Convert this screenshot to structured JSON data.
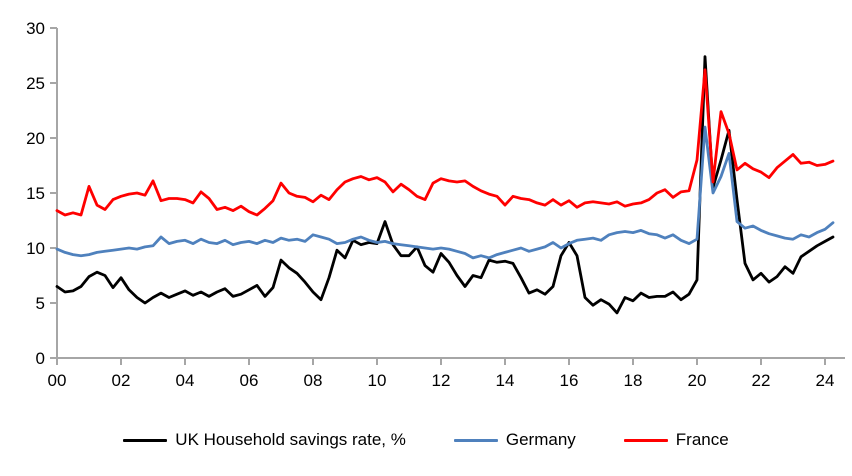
{
  "chart_data": {
    "type": "line",
    "title": "",
    "xlabel": "",
    "ylabel": "",
    "frequency": "quarterly",
    "x_start_year": 2000,
    "x_end": "2024Q2",
    "x_tick_labels": [
      "00",
      "02",
      "04",
      "06",
      "08",
      "10",
      "12",
      "14",
      "16",
      "18",
      "20",
      "22",
      "24"
    ],
    "x_tick_years": [
      2000,
      2002,
      2004,
      2006,
      2008,
      2010,
      2012,
      2014,
      2016,
      2018,
      2020,
      2022,
      2024
    ],
    "y_ticks": [
      0,
      5,
      10,
      15,
      20,
      25,
      30
    ],
    "ylim": [
      0,
      30
    ],
    "grid": false,
    "legend_position": "bottom",
    "axis_color": "#a6a6a6",
    "series": [
      {
        "name": "UK Household savings rate, %",
        "color": "#000000",
        "values": [
          6.5,
          6.0,
          6.1,
          6.5,
          7.4,
          7.8,
          7.5,
          6.4,
          7.3,
          6.2,
          5.5,
          5.0,
          5.5,
          5.9,
          5.5,
          5.8,
          6.1,
          5.7,
          6.0,
          5.6,
          6.0,
          6.3,
          5.6,
          5.8,
          6.2,
          6.6,
          5.6,
          6.4,
          8.9,
          8.2,
          7.7,
          6.9,
          6.0,
          5.3,
          7.3,
          9.8,
          9.1,
          10.7,
          10.3,
          10.5,
          10.4,
          12.4,
          10.3,
          9.3,
          9.3,
          10.1,
          8.4,
          7.8,
          9.5,
          8.7,
          7.5,
          6.5,
          7.5,
          7.3,
          8.9,
          8.7,
          8.8,
          8.6,
          7.3,
          5.9,
          6.2,
          5.8,
          6.5,
          9.3,
          10.5,
          9.3,
          5.5,
          4.8,
          5.3,
          4.9,
          4.1,
          5.5,
          5.2,
          5.9,
          5.5,
          5.6,
          5.6,
          6.0,
          5.3,
          5.8,
          7.1,
          27.4,
          15.5,
          18.0,
          20.7,
          14.4,
          8.6,
          7.1,
          7.7,
          6.9,
          7.4,
          8.3,
          7.7,
          9.2,
          9.7,
          10.2,
          10.6,
          11.0
        ]
      },
      {
        "name": "Germany",
        "color": "#4f81bd",
        "values": [
          9.9,
          9.6,
          9.4,
          9.3,
          9.4,
          9.6,
          9.7,
          9.8,
          9.9,
          10.0,
          9.9,
          10.1,
          10.2,
          11.0,
          10.4,
          10.6,
          10.7,
          10.4,
          10.8,
          10.5,
          10.4,
          10.7,
          10.3,
          10.5,
          10.6,
          10.4,
          10.7,
          10.5,
          10.9,
          10.7,
          10.8,
          10.6,
          11.2,
          11.0,
          10.8,
          10.4,
          10.5,
          10.8,
          11.0,
          10.7,
          10.5,
          10.6,
          10.4,
          10.3,
          10.2,
          10.1,
          10.0,
          9.9,
          10.0,
          9.9,
          9.7,
          9.5,
          9.1,
          9.3,
          9.1,
          9.4,
          9.6,
          9.8,
          10.0,
          9.7,
          9.9,
          10.1,
          10.5,
          10.0,
          10.4,
          10.7,
          10.8,
          10.9,
          10.7,
          11.2,
          11.4,
          11.5,
          11.4,
          11.6,
          11.3,
          11.2,
          10.9,
          11.2,
          10.7,
          10.4,
          10.8,
          21.0,
          15.0,
          16.5,
          18.6,
          12.4,
          11.8,
          12.0,
          11.6,
          11.3,
          11.1,
          10.9,
          10.8,
          11.2,
          11.0,
          11.4,
          11.7,
          12.3
        ]
      },
      {
        "name": "France",
        "color": "#ff0000",
        "values": [
          13.4,
          13.0,
          13.2,
          13.0,
          15.6,
          13.9,
          13.5,
          14.4,
          14.7,
          14.9,
          15.0,
          14.8,
          16.1,
          14.3,
          14.5,
          14.5,
          14.4,
          14.1,
          15.1,
          14.5,
          13.5,
          13.7,
          13.4,
          13.8,
          13.3,
          13.0,
          13.6,
          14.3,
          15.9,
          15.0,
          14.7,
          14.6,
          14.2,
          14.8,
          14.4,
          15.3,
          16.0,
          16.3,
          16.5,
          16.2,
          16.4,
          16.0,
          15.1,
          15.8,
          15.3,
          14.7,
          14.4,
          15.9,
          16.3,
          16.1,
          16.0,
          16.1,
          15.6,
          15.2,
          14.9,
          14.7,
          13.9,
          14.7,
          14.5,
          14.4,
          14.1,
          13.9,
          14.4,
          13.9,
          14.3,
          13.7,
          14.1,
          14.2,
          14.1,
          14.0,
          14.2,
          13.8,
          14.0,
          14.1,
          14.4,
          15.0,
          15.3,
          14.6,
          15.1,
          15.2,
          18.0,
          26.2,
          16.0,
          22.4,
          20.4,
          17.1,
          17.7,
          17.2,
          16.9,
          16.4,
          17.3,
          17.9,
          18.5,
          17.7,
          17.8,
          17.5,
          17.6,
          17.9
        ]
      }
    ]
  },
  "legend": {
    "items": [
      {
        "label": "UK Household savings rate, %"
      },
      {
        "label": "Germany"
      },
      {
        "label": "France"
      }
    ]
  }
}
